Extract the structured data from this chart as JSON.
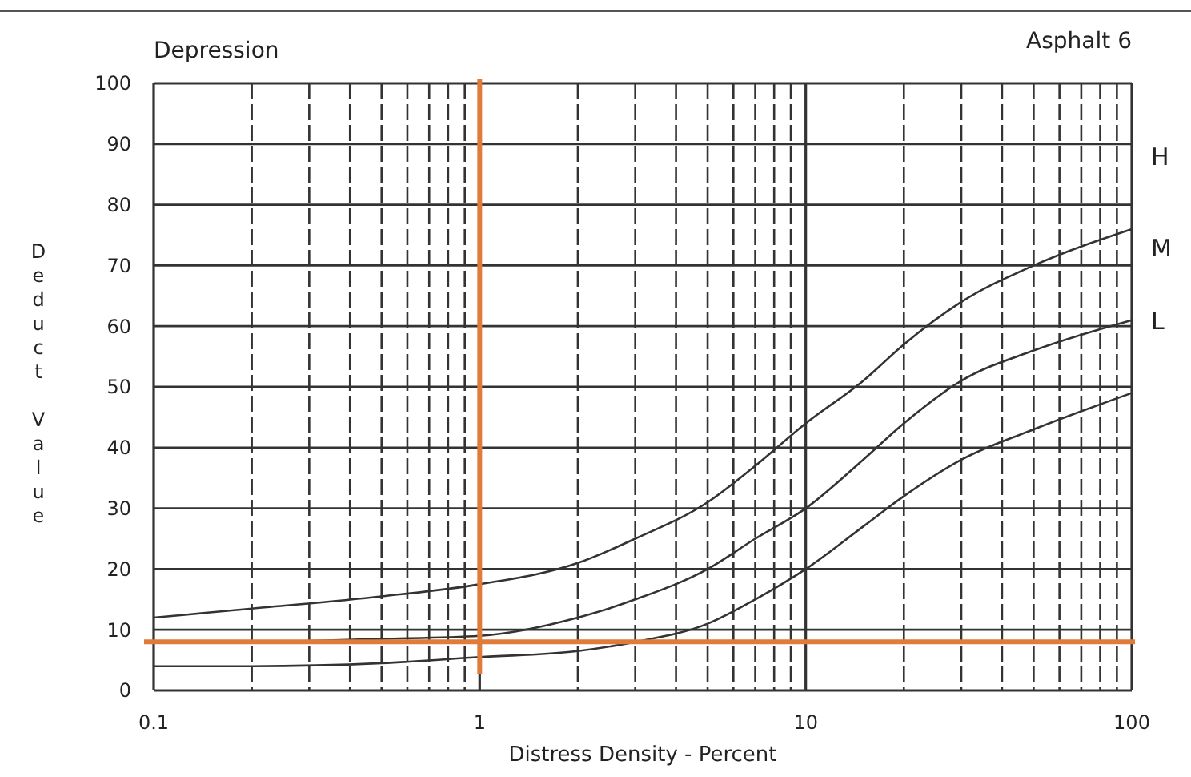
{
  "chart_data": {
    "type": "line",
    "title": "Depression",
    "subtitle": "Asphalt 6",
    "xlabel": "Distress Density - Percent",
    "ylabel": "Deduct Value",
    "log": "x",
    "grid": true,
    "legend": false,
    "marker": "none",
    "line_style": "solid",
    "xlim": [
      0.1,
      100
    ],
    "ylim": [
      0,
      100
    ],
    "xticks": [
      0.1,
      {
        "value": 0.2,
        "label": null
      },
      {
        "value": 0.3,
        "label": null
      },
      {
        "value": 0.4,
        "label": null
      },
      {
        "value": 0.5,
        "label": null
      },
      {
        "value": 0.6,
        "label": null
      },
      {
        "value": 0.7,
        "label": null
      },
      {
        "value": 0.8,
        "label": null
      },
      {
        "value": 0.9,
        "label": null
      },
      1,
      {
        "value": 2,
        "label": null
      },
      {
        "value": 3,
        "label": null
      },
      {
        "value": 4,
        "label": null
      },
      {
        "value": 5,
        "label": null
      },
      {
        "value": 6,
        "label": null
      },
      {
        "value": 7,
        "label": null
      },
      {
        "value": 8,
        "label": null
      },
      {
        "value": 9,
        "label": null
      },
      10,
      {
        "value": 20,
        "label": null
      },
      {
        "value": 30,
        "label": null
      },
      {
        "value": 40,
        "label": null
      },
      {
        "value": 50,
        "label": null
      },
      {
        "value": 60,
        "label": null
      },
      {
        "value": 70,
        "label": null
      },
      {
        "value": 80,
        "label": null
      },
      {
        "value": 90,
        "label": null
      },
      100
    ],
    "yticks": [
      0,
      10,
      20,
      30,
      40,
      50,
      60,
      70,
      80,
      90,
      100
    ],
    "x": [
      0.1,
      0.2,
      0.5,
      1,
      2,
      3,
      5,
      7,
      10,
      15,
      20,
      30,
      50,
      100
    ],
    "series": [
      {
        "name": "H",
        "color": "#333333",
        "values": [
          12,
          13.5,
          15.5,
          17.5,
          21,
          25,
          31,
          37,
          44,
          51,
          57,
          64,
          70,
          76
        ]
      },
      {
        "name": "M",
        "color": "#333333",
        "values": [
          8,
          8,
          8.5,
          9,
          12,
          15,
          20,
          25,
          30,
          38,
          44,
          51,
          56,
          61
        ]
      },
      {
        "name": "L",
        "color": "#333333",
        "values": [
          4,
          4,
          4.5,
          5.5,
          6.5,
          8,
          11,
          15,
          20,
          27,
          32,
          38,
          43,
          49
        ]
      }
    ],
    "ref_lines": [
      {
        "axis": "x",
        "value": 1,
        "color": "#e07b39"
      },
      {
        "axis": "y",
        "value": 8,
        "color": "#e07b39"
      }
    ]
  }
}
